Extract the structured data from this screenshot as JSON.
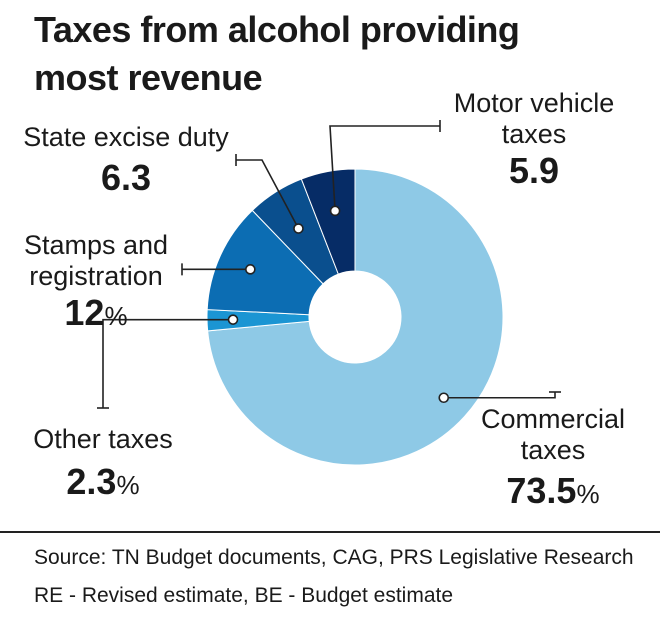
{
  "title_lines": [
    "Taxes from alcohol providing",
    "most revenue"
  ],
  "chart_data": {
    "type": "pie",
    "donut": true,
    "title": "Taxes from alcohol providing most revenue",
    "slices": [
      {
        "name": "Commercial taxes",
        "value": 73.5,
        "value_text": "73.5",
        "unit": "%",
        "color": "#8ec9e6"
      },
      {
        "name": "Other taxes",
        "value": 2.3,
        "value_text": "2.3",
        "unit": "%",
        "color": "#1b95d3"
      },
      {
        "name": "Stamps and registration",
        "value": 12,
        "value_text": "12",
        "unit": "%",
        "color": "#0c6db3"
      },
      {
        "name": "State excise duty",
        "value": 6.3,
        "value_text": "6.3",
        "unit": "",
        "color": "#0a4f8e"
      },
      {
        "name": "Motor vehicle taxes",
        "value": 5.9,
        "value_text": "5.9",
        "unit": "",
        "color": "#062c66"
      }
    ]
  },
  "labels": {
    "commercial": {
      "name_lines": [
        "Commercial",
        "taxes"
      ],
      "value": "73.5",
      "unit": "%"
    },
    "other": {
      "name_lines": [
        "Other taxes"
      ],
      "value": "2.3",
      "unit": "%"
    },
    "stamps": {
      "name_lines": [
        "Stamps and",
        "registration"
      ],
      "value": "12",
      "unit": "%"
    },
    "excise": {
      "name_lines": [
        "State excise duty"
      ],
      "value": "6.3",
      "unit": ""
    },
    "motor": {
      "name_lines": [
        "Motor vehicle",
        "taxes"
      ],
      "value": "5.9",
      "unit": ""
    }
  },
  "footer": {
    "source": "Source: TN Budget documents, CAG, PRS Legislative Research",
    "note": "RE - Revised estimate, BE - Budget estimate"
  }
}
